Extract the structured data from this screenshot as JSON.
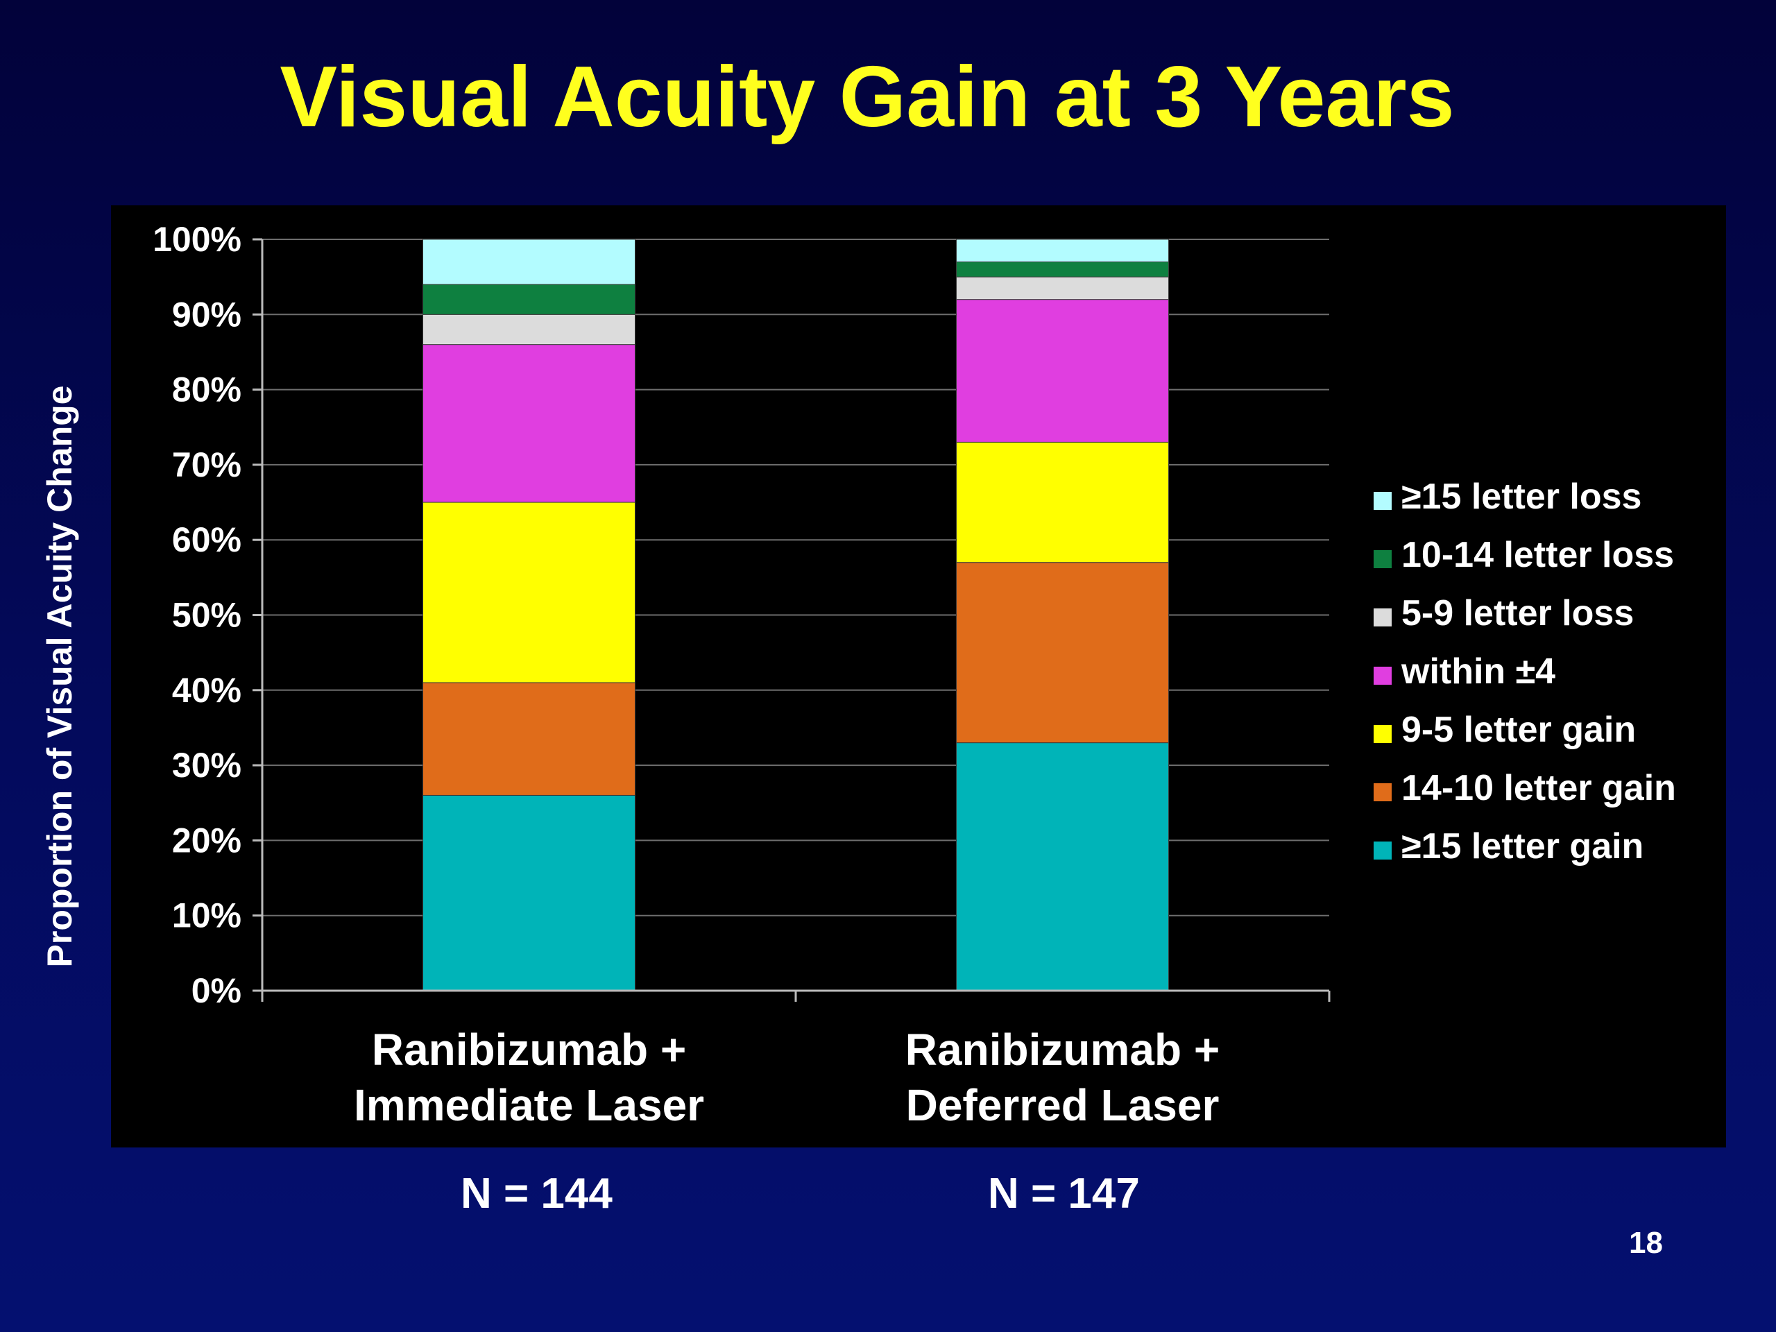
{
  "slide": {
    "title": "Visual Acuity Gain at 3 Years",
    "page_number": "18",
    "n_labels": [
      "N = 144",
      "N = 147"
    ]
  },
  "chart_data": {
    "type": "bar",
    "stacked": true,
    "title": "",
    "ylabel": "Proportion of Visual Acuity Change",
    "xlabel": "",
    "ylim": [
      0,
      100
    ],
    "y_tick_labels": [
      "0%",
      "10%",
      "20%",
      "30%",
      "40%",
      "50%",
      "60%",
      "70%",
      "80%",
      "90%",
      "100%"
    ],
    "categories": [
      "Ranibizumab + Immediate Laser",
      "Ranibizumab + Deferred Laser"
    ],
    "category_lines": [
      [
        "Ranibizumab +",
        "Immediate Laser"
      ],
      [
        "Ranibizumab +",
        "Deferred Laser"
      ]
    ],
    "grid": true,
    "legend_position": "right",
    "series": [
      {
        "name": "≥15 letter gain",
        "color": "#00b4b8",
        "values": [
          26,
          33
        ]
      },
      {
        "name": "14-10 letter gain",
        "color": "#e06c1a",
        "values": [
          15,
          24
        ]
      },
      {
        "name": "9-5 letter gain",
        "color": "#ffff00",
        "values": [
          24,
          16
        ]
      },
      {
        "name": "within ±4",
        "color": "#e03ee0",
        "values": [
          21,
          19
        ]
      },
      {
        "name": "5-9 letter loss",
        "color": "#dcdcdc",
        "values": [
          4,
          3
        ]
      },
      {
        "name": "10-14 letter loss",
        "color": "#0e8040",
        "values": [
          4,
          2
        ]
      },
      {
        "name": "≥15 letter loss",
        "color": "#b3fcff",
        "values": [
          6,
          3
        ]
      }
    ]
  }
}
